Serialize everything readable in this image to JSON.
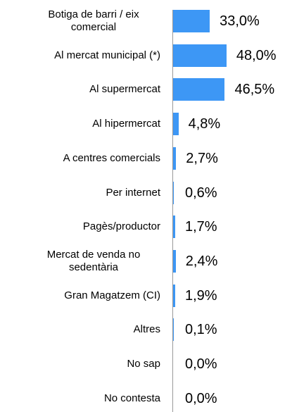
{
  "chart_data": {
    "type": "bar",
    "orientation": "horizontal",
    "categories": [
      "Botiga de barri / eix comercial",
      "Al mercat municipal (*)",
      "Al supermercat",
      "Al hipermercat",
      "A centres comercials",
      "Per internet",
      "Pagès/productor",
      "Mercat de venda no sedentària",
      "Gran Magatzem (CI)",
      "Altres",
      "No sap",
      "No contesta"
    ],
    "values": [
      33.0,
      48.0,
      46.5,
      4.8,
      2.7,
      0.6,
      1.7,
      2.4,
      1.9,
      0.1,
      0.0,
      0.0
    ],
    "value_labels": [
      "33,0%",
      "48,0%",
      "46,5%",
      "4,8%",
      "2,7%",
      "0,6%",
      "1,7%",
      "2,4%",
      "1,9%",
      "0,1%",
      "0,0%",
      "0,0%"
    ],
    "color": "#3d97f5"
  }
}
